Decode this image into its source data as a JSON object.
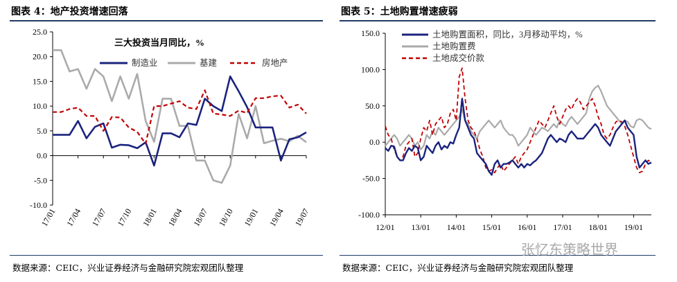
{
  "page": {
    "left_title": "图表 4：地产投资增速回落",
    "right_title": "图表 5：土地购置增速疲弱",
    "left_source": "数据来源：CEIC，兴业证券经济与金融研究院宏观团队整理",
    "right_source": "数据来源：CEIC，兴业证券经济与金融研究院宏观团队整理",
    "watermark": "张忆东策略世界"
  },
  "colors": {
    "navy": "#1a237e",
    "gray": "#aaaaaa",
    "red": "#c00000",
    "rule": "#1f3864"
  },
  "chart_data": [
    {
      "type": "line",
      "title": "三大投资当月同比，%",
      "ylim": [
        -10,
        25
      ],
      "yticks": [
        "25.0",
        "20.0",
        "15.0",
        "10.0",
        "5.0",
        "0.0",
        "-5.0",
        "-10.0"
      ],
      "xticks": [
        "17/01",
        "17/04",
        "17/07",
        "17/10",
        "18/01",
        "18/04",
        "18/07",
        "18/10",
        "19/01",
        "19/04",
        "19/07"
      ],
      "x": [
        "17/01",
        "17/02",
        "17/03",
        "17/04",
        "17/05",
        "17/06",
        "17/07",
        "17/08",
        "17/09",
        "17/10",
        "17/11",
        "17/12",
        "18/01",
        "18/02",
        "18/03",
        "18/04",
        "18/05",
        "18/06",
        "18/07",
        "18/08",
        "18/09",
        "18/10",
        "18/11",
        "18/12",
        "19/01",
        "19/02",
        "19/03",
        "19/04",
        "19/05",
        "19/06",
        "19/07"
      ],
      "series": [
        {
          "name": "制造业",
          "values": [
            4.2,
            4.2,
            4.2,
            7,
            3.5,
            5.8,
            6.5,
            1.6,
            2.2,
            2.1,
            1.5,
            2.7,
            -2,
            4.5,
            4.5,
            3.7,
            6.5,
            6.2,
            11.5,
            10,
            9,
            16,
            13,
            9.8,
            5.7,
            5.7,
            5.7,
            -1,
            3.3,
            3.7,
            4.7
          ]
        },
        {
          "name": "基建",
          "values": [
            21.3,
            21.3,
            17,
            17.5,
            13.5,
            17.5,
            16,
            11,
            16,
            11.5,
            16.5,
            7,
            2.8,
            11.5,
            11.5,
            6,
            6,
            -1,
            -1,
            -5,
            -5.5,
            -2,
            8.4,
            3.5,
            10,
            2.5,
            3,
            3.4,
            2.9,
            4,
            2.7
          ]
        },
        {
          "name": "房地产",
          "values": [
            8.8,
            8.8,
            9.4,
            9.7,
            8,
            8,
            5,
            7.8,
            7.7,
            5.7,
            4.8,
            2.4,
            10,
            10,
            10.5,
            11,
            9.7,
            9.4,
            13.2,
            8.5,
            8.3,
            8,
            9.1,
            8.6,
            11.6,
            11.6,
            12,
            12.1,
            9.7,
            10.3,
            8.5
          ]
        }
      ]
    },
    {
      "type": "line",
      "ylim": [
        -100,
        150
      ],
      "yticks": [
        "150.0",
        "100.0",
        "50.0",
        "0.0",
        "-50.0",
        "-100.0"
      ],
      "xticks": [
        "12/01",
        "13/01",
        "14/01",
        "15/01",
        "16/01",
        "17/01",
        "18/01",
        "19/01"
      ],
      "x_start": "12/01",
      "x_end": "19/07",
      "series": [
        {
          "name": "土地购置面积，同比，3月移动平均，%",
          "values": [
            -8,
            -12,
            -5,
            -6,
            -20,
            -25,
            -25,
            -15,
            -8,
            -12,
            -5,
            -8,
            -25,
            -20,
            -5,
            -10,
            -15,
            -5,
            0,
            -10,
            -5,
            -8,
            0,
            -2,
            10,
            20,
            60,
            30,
            20,
            10,
            5,
            -15,
            -20,
            -25,
            -30,
            -40,
            -45,
            -30,
            -25,
            -35,
            -30,
            -30,
            -28,
            -25,
            -30,
            -35,
            -30,
            -35,
            -30,
            -32,
            -28,
            -25,
            -20,
            -15,
            -5,
            5,
            10,
            5,
            0,
            5,
            3,
            0,
            10,
            15,
            10,
            5,
            5,
            5,
            10,
            15,
            20,
            25,
            20,
            10,
            5,
            0,
            -5,
            5,
            15,
            20,
            25,
            30,
            20,
            15,
            10,
            -20,
            -35,
            -30,
            -25,
            -30,
            -28
          ]
        },
        {
          "name": "土地购置费",
          "values": [
            -5,
            0,
            5,
            10,
            5,
            -5,
            0,
            5,
            10,
            5,
            -5,
            0,
            -10,
            -5,
            10,
            5,
            15,
            10,
            20,
            15,
            10,
            15,
            20,
            25,
            30,
            35,
            45,
            30,
            25,
            15,
            10,
            5,
            15,
            20,
            25,
            30,
            25,
            20,
            25,
            30,
            20,
            15,
            10,
            10,
            5,
            -5,
            0,
            5,
            10,
            20,
            15,
            10,
            15,
            20,
            18,
            15,
            20,
            25,
            20,
            30,
            25,
            22,
            30,
            35,
            30,
            25,
            30,
            35,
            40,
            60,
            70,
            75,
            78,
            70,
            60,
            50,
            45,
            40,
            35,
            30,
            25,
            30,
            28,
            22,
            20,
            30,
            32,
            30,
            25,
            20,
            18
          ]
        },
        {
          "name": "土地成交价款",
          "values": [
            22,
            10,
            5,
            -10,
            -20,
            -25,
            -20,
            -5,
            0,
            5,
            -20,
            -15,
            5,
            20,
            15,
            30,
            10,
            25,
            30,
            35,
            20,
            25,
            40,
            45,
            30,
            90,
            102,
            60,
            30,
            20,
            15,
            5,
            -10,
            -20,
            -35,
            -40,
            -38,
            -42,
            -35,
            -30,
            -40,
            -35,
            -30,
            -25,
            -20,
            -30,
            -20,
            -15,
            -10,
            0,
            10,
            20,
            30,
            25,
            20,
            30,
            40,
            50,
            35,
            25,
            35,
            45,
            50,
            45,
            55,
            60,
            55,
            45,
            50,
            55,
            60,
            50,
            35,
            25,
            10,
            5,
            10,
            20,
            28,
            30,
            28,
            22,
            10,
            -5,
            -20,
            -35,
            -42,
            -40,
            -30,
            -25,
            -28
          ]
        }
      ]
    }
  ]
}
